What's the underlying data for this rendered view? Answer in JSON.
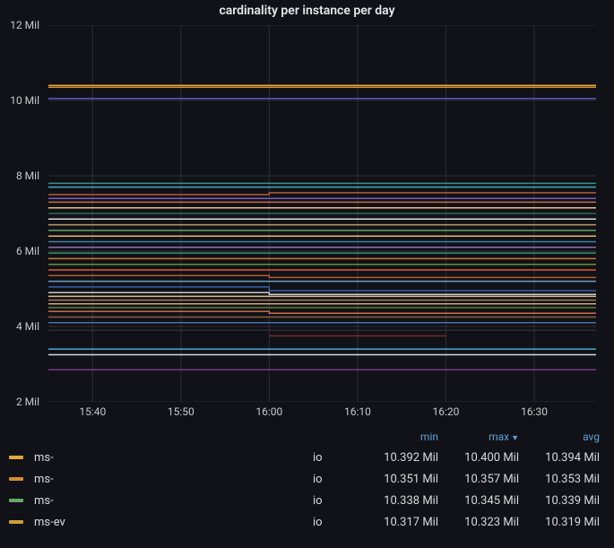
{
  "title": "cardinality per instance per day",
  "background_color": "#111217",
  "text_color": "#d8d9da",
  "title_fontsize": 14,
  "axis_fontsize": 12,
  "grid_color": "#2c2f36",
  "axis_text_color": "#c7c8c9",
  "y": {
    "min": 2,
    "max": 12,
    "unit_suffix": " Mil",
    "ticks": [
      2,
      4,
      6,
      8,
      10,
      12
    ]
  },
  "x": {
    "min": 0,
    "max": 62,
    "ticks": [
      {
        "pos": 5,
        "label": "15:40"
      },
      {
        "pos": 15,
        "label": "15:50"
      },
      {
        "pos": 25,
        "label": "16:00"
      },
      {
        "pos": 35,
        "label": "16:10"
      },
      {
        "pos": 45,
        "label": "16:20"
      },
      {
        "pos": 55,
        "label": "16:30"
      }
    ]
  },
  "line_width": 1.5,
  "series": [
    {
      "color": "#e0a83b",
      "v": 10.4
    },
    {
      "color": "#d98e2b",
      "v": 10.35
    },
    {
      "color": "#6b59c3",
      "v": 10.05
    },
    {
      "color": "#3a9188",
      "v": 7.8
    },
    {
      "color": "#4aa6c2",
      "v": 7.7
    },
    {
      "color": "#b85a3a",
      "v": 7.5,
      "step_at": 25,
      "v2": 7.55
    },
    {
      "color": "#7a5fbf",
      "v": 7.4
    },
    {
      "color": "#c96a4a",
      "v": 7.3
    },
    {
      "color": "#e8c28a",
      "v": 7.15
    },
    {
      "color": "#2e6b5a",
      "v": 7.0
    },
    {
      "color": "#d7dcdc",
      "v": 6.85
    },
    {
      "color": "#b89a6a",
      "v": 6.7
    },
    {
      "color": "#5fa66b",
      "v": 6.55
    },
    {
      "color": "#e0b860",
      "v": 6.4
    },
    {
      "color": "#3a7faa",
      "v": 6.25
    },
    {
      "color": "#8e6fb8",
      "v": 6.1
    },
    {
      "color": "#3e8f6a",
      "v": 5.95
    },
    {
      "color": "#c47a3a",
      "v": 5.8
    },
    {
      "color": "#6b8f3a",
      "v": 5.65
    },
    {
      "color": "#d55a3a",
      "v": 5.5
    },
    {
      "color": "#b55a2a",
      "v": 5.35,
      "step_at": 25,
      "v2": 5.3
    },
    {
      "color": "#6aa0c9",
      "v": 5.2
    },
    {
      "color": "#3a5faa",
      "v": 5.05,
      "step_at": 25,
      "v2": 4.95
    },
    {
      "color": "#c9c9c9",
      "v": 4.9,
      "step_at": 25,
      "v2": 4.85
    },
    {
      "color": "#e0c08a",
      "v": 4.8
    },
    {
      "color": "#9a7f5a",
      "v": 4.7
    },
    {
      "color": "#d0a878",
      "v": 4.6
    },
    {
      "color": "#5a7f3a",
      "v": 4.5
    },
    {
      "color": "#c96a4a",
      "v": 4.4,
      "step_at": 25,
      "v2": 4.35
    },
    {
      "color": "#8e5f3a",
      "v": 4.25
    },
    {
      "color": "#4a6faa",
      "v": 4.1
    },
    {
      "color": "#2a2f36",
      "v": 3.9
    },
    {
      "color": "#7a2a2a",
      "v": 3.75,
      "mid_only": true,
      "mid_start": 25,
      "mid_end": 45
    },
    {
      "color": "#4aa6d9",
      "v": 3.4
    },
    {
      "color": "#d9d9d9",
      "v": 3.25
    },
    {
      "color": "#7a3a8a",
      "v": 2.85
    }
  ],
  "legend": {
    "header": {
      "min": "min",
      "max": "max",
      "avg": "avg",
      "sort": "max",
      "sort_dir": "desc"
    },
    "header_color": "#5ea1d8",
    "rows": [
      {
        "color": "#e0a83b",
        "name": "ms-",
        "suffix": "io",
        "min": "10.392 Mil",
        "max": "10.400 Mil",
        "avg": "10.394 Mil"
      },
      {
        "color": "#d98e2b",
        "name": "ms-",
        "suffix": "io",
        "min": "10.351 Mil",
        "max": "10.357 Mil",
        "avg": "10.353 Mil"
      },
      {
        "color": "#6aa66b",
        "name": "ms-",
        "suffix": "io",
        "min": "10.338 Mil",
        "max": "10.345 Mil",
        "avg": "10.339 Mil"
      },
      {
        "color": "#c9a03a",
        "name": "ms-ev",
        "suffix": "io",
        "min": "10.317 Mil",
        "max": "10.323 Mil",
        "avg": "10.319 Mil"
      }
    ]
  }
}
